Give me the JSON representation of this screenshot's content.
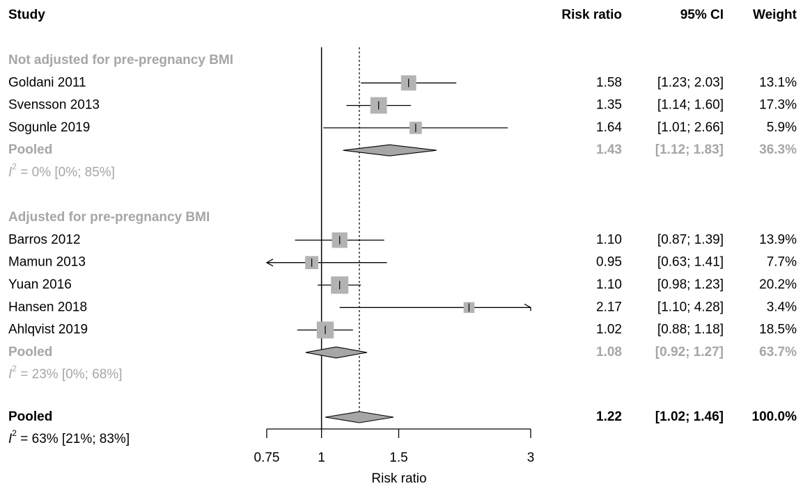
{
  "chart_data": {
    "type": "forest",
    "header": {
      "study": "Study",
      "rr": "Risk ratio",
      "ci": "95% CI",
      "weight": "Weight"
    },
    "xlabel": "Risk ratio",
    "x_ticks": [
      0.75,
      1,
      1.5,
      3
    ],
    "x_tick_labels": [
      "0.75",
      "1",
      "1.5",
      "3"
    ],
    "x_scale": "log",
    "xlim": [
      0.75,
      3
    ],
    "null_line": 1,
    "overall_line": 1.22,
    "colors": {
      "box": "#b3b3b3",
      "diamond": "#a6a6a6",
      "subgroup_text": "#a6a6a6",
      "line": "#000000"
    },
    "groups": [
      {
        "title": "Not adjusted for pre-pregnancy BMI",
        "studies": [
          {
            "name": "Goldani 2011",
            "rr": 1.58,
            "lo": 1.23,
            "hi": 2.03,
            "rr_text": "1.58",
            "ci_text": "[1.23; 2.03]",
            "weight_text": "13.1%",
            "weight": 13.1
          },
          {
            "name": "Svensson 2013",
            "rr": 1.35,
            "lo": 1.14,
            "hi": 1.6,
            "rr_text": "1.35",
            "ci_text": "[1.14; 1.60]",
            "weight_text": "17.3%",
            "weight": 17.3
          },
          {
            "name": "Sogunle 2019",
            "rr": 1.64,
            "lo": 1.01,
            "hi": 2.66,
            "rr_text": "1.64",
            "ci_text": "[1.01; 2.66]",
            "weight_text": "5.9%",
            "weight": 5.9
          }
        ],
        "pooled": {
          "label": "Pooled",
          "rr": 1.43,
          "lo": 1.12,
          "hi": 1.83,
          "rr_text": "1.43",
          "ci_text": "[1.12; 1.83]",
          "weight_text": "36.3%"
        },
        "het_value": " = 0% [0%; 85%]"
      },
      {
        "title": "Adjusted for pre-pregnancy BMI",
        "studies": [
          {
            "name": "Barros 2012",
            "rr": 1.1,
            "lo": 0.87,
            "hi": 1.39,
            "rr_text": "1.10",
            "ci_text": "[0.87; 1.39]",
            "weight_text": "13.9%",
            "weight": 13.9
          },
          {
            "name": "Mamun 2013",
            "rr": 0.95,
            "lo": 0.63,
            "hi": 1.41,
            "rr_text": "0.95",
            "ci_text": "[0.63; 1.41]",
            "weight_text": "7.7%",
            "weight": 7.7
          },
          {
            "name": "Yuan 2016",
            "rr": 1.1,
            "lo": 0.98,
            "hi": 1.23,
            "rr_text": "1.10",
            "ci_text": "[0.98; 1.23]",
            "weight_text": "20.2%",
            "weight": 20.2
          },
          {
            "name": "Hansen 2018",
            "rr": 2.17,
            "lo": 1.1,
            "hi": 4.28,
            "rr_text": "2.17",
            "ci_text": "[1.10; 4.28]",
            "weight_text": "3.4%",
            "weight": 3.4
          },
          {
            "name": "Ahlqvist 2019",
            "rr": 1.02,
            "lo": 0.88,
            "hi": 1.18,
            "rr_text": "1.02",
            "ci_text": "[0.88; 1.18]",
            "weight_text": "18.5%",
            "weight": 18.5
          }
        ],
        "pooled": {
          "label": "Pooled",
          "rr": 1.08,
          "lo": 0.92,
          "hi": 1.27,
          "rr_text": "1.08",
          "ci_text": "[0.92; 1.27]",
          "weight_text": "63.7%"
        },
        "het_value": " = 23% [0%; 68%]"
      }
    ],
    "overall": {
      "label": "Pooled",
      "rr": 1.22,
      "lo": 1.02,
      "hi": 1.46,
      "rr_text": "1.22",
      "ci_text": "[1.02; 1.46]",
      "weight_text": "100.0%",
      "het_value": " = 63% [21%; 83%]"
    },
    "het_symbol": "I",
    "het_exponent": "2"
  }
}
